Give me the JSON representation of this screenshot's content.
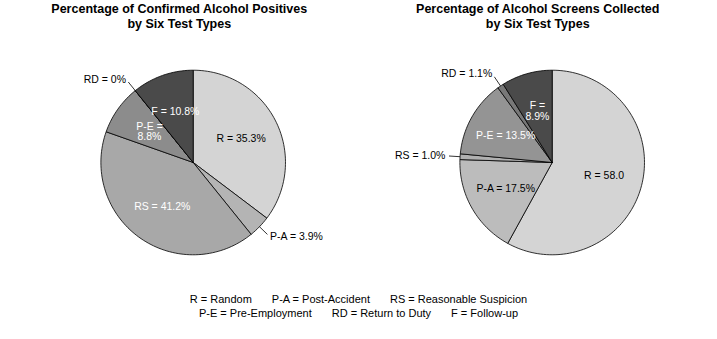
{
  "chart_data": [
    {
      "type": "pie",
      "title": "Percentage of Confirmed Alcohol Positives\nby Six Test Types",
      "categories": [
        "R = Random",
        "P-A = Post-Accident",
        "RS = Reasonable Suspicion",
        "P-E = Pre-Employment",
        "RD = Return to Duty",
        "F = Follow-up"
      ],
      "values": [
        35.3,
        3.9,
        41.2,
        8.8,
        0.0,
        10.8
      ],
      "value_labels": [
        "R = 35.3%",
        "P-A = 3.9%",
        "RS = 41.2%",
        "P-E =\n8.8%",
        "RD = 0%",
        "F = 10.8%"
      ],
      "colors": [
        "#d4d4d4",
        "#b4b4b4",
        "#a8a8a8",
        "#8c8c8c",
        "#c8c8c8",
        "#4a4a4a"
      ],
      "data_labels": true,
      "legend": "bottom"
    },
    {
      "type": "pie",
      "title": "Percentage of Alcohol Screens Collected\nby Six Test Types",
      "categories": [
        "R = Random",
        "P-A = Post-Accident",
        "RS = Reasonable Suspicion",
        "P-E = Pre-Employment",
        "RD = Return to Duty",
        "F = Follow-up"
      ],
      "values": [
        58.0,
        17.5,
        1.0,
        13.5,
        1.1,
        8.9
      ],
      "value_labels": [
        "R = 58.0",
        "P-A = 17.5%",
        "RS = 1.0%",
        "P-E = 13.5%",
        "RD = 1.1%",
        "F =\n8.9%"
      ],
      "colors": [
        "#d4d4d4",
        "#bcbcbc",
        "#b0b0b0",
        "#949494",
        "#787878",
        "#4a4a4a"
      ],
      "data_labels": true,
      "legend": "bottom"
    }
  ]
}
